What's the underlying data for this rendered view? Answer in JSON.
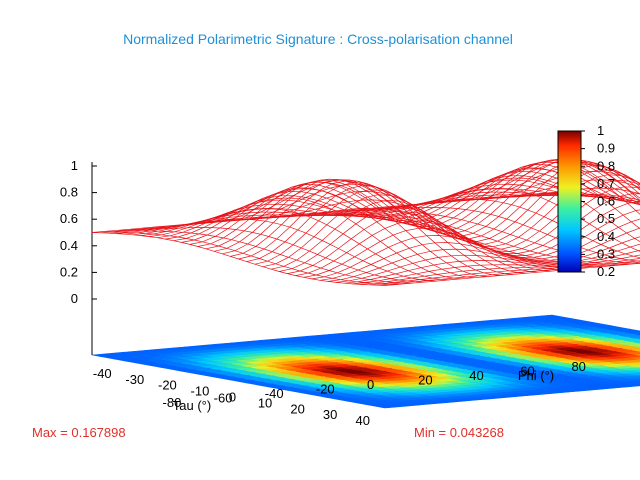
{
  "chart_data": {
    "type": "surface3d",
    "title": "Normalized Polarimetric Signature : Cross-polarisation channel",
    "xlabel": "Tau (°)",
    "ylabel": "Phi (°)",
    "x_ticks": [
      "-40",
      "-30",
      "-20",
      "-10",
      "0",
      "10",
      "20",
      "30",
      "40"
    ],
    "y_ticks": [
      "-80",
      "-60",
      "-40",
      "-20",
      "0",
      "20",
      "40",
      "60",
      "80"
    ],
    "z_ticks": [
      "0",
      "0.2",
      "0.4",
      "0.6",
      "0.8",
      "1"
    ],
    "xlim": [
      -45,
      45
    ],
    "ylim": [
      -90,
      90
    ],
    "zlim": [
      0,
      1
    ],
    "colorbar": {
      "ticks": [
        "1",
        "0.9",
        "0.8",
        "0.7",
        "0.6",
        "0.5",
        "0.4",
        "0.3",
        "0.2"
      ],
      "range": [
        0.2,
        1
      ]
    },
    "colors": {
      "mesh": "#e8141a",
      "title": "#1e90d8",
      "stats": "#e0302a"
    },
    "max_label": "Max = 0.167898",
    "min_label": "Min = 0.043268"
  }
}
